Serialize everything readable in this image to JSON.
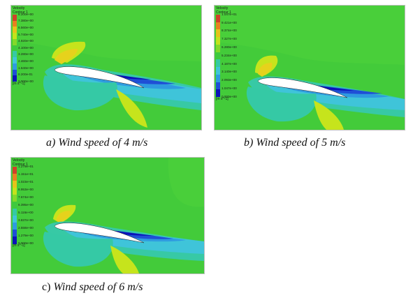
{
  "panels": [
    {
      "id": "a",
      "legend": {
        "title": "Velocity",
        "subtitle": "Contour 1",
        "ticks": [
          "8.200e+00",
          "7.380e+00",
          "6.560e+00",
          "5.740e+00",
          "4.920e+00",
          "4.100e+00",
          "3.280e+00",
          "2.460e+00",
          "1.640e+00",
          "8.200e-01",
          "0.000e+00"
        ],
        "unit": "[m s^-1]"
      },
      "caption": "a) Wind speed of 4 m/s"
    },
    {
      "id": "b",
      "legend": {
        "title": "Velocity",
        "subtitle": "Contour 1",
        "ticks": [
          "1.047e+01",
          "9.421e+00",
          "8.374e+00",
          "7.327e+00",
          "6.280e+00",
          "5.234e+00",
          "4.187e+00",
          "3.140e+00",
          "2.093e+00",
          "1.047e+00",
          "0.000e+00"
        ],
        "unit": "[m s^-1]"
      },
      "caption": "b) Wind speed of 5 m/s"
    },
    {
      "id": "c",
      "legend": {
        "title": "Velocity",
        "subtitle": "Contour 1",
        "ticks": [
          "1.279e+01",
          "1.151e+01",
          "1.023e+01",
          "8.953e+00",
          "7.674e+00",
          "6.395e+00",
          "5.116e+00",
          "3.837e+00",
          "2.558e+00",
          "1.279e+00",
          "0.000e+00"
        ],
        "unit": "[m s^-1]"
      },
      "caption_prefix": "c)",
      "caption_text": "Wind speed of 6 m/s"
    }
  ],
  "colormap": [
    "#d0402a",
    "#e8801f",
    "#e6c21a",
    "#c4e21c",
    "#84d82a",
    "#3ec93e",
    "#35c9a5",
    "#3fc4d9",
    "#2f9be0",
    "#1f4fd6",
    "#0b12b8"
  ]
}
